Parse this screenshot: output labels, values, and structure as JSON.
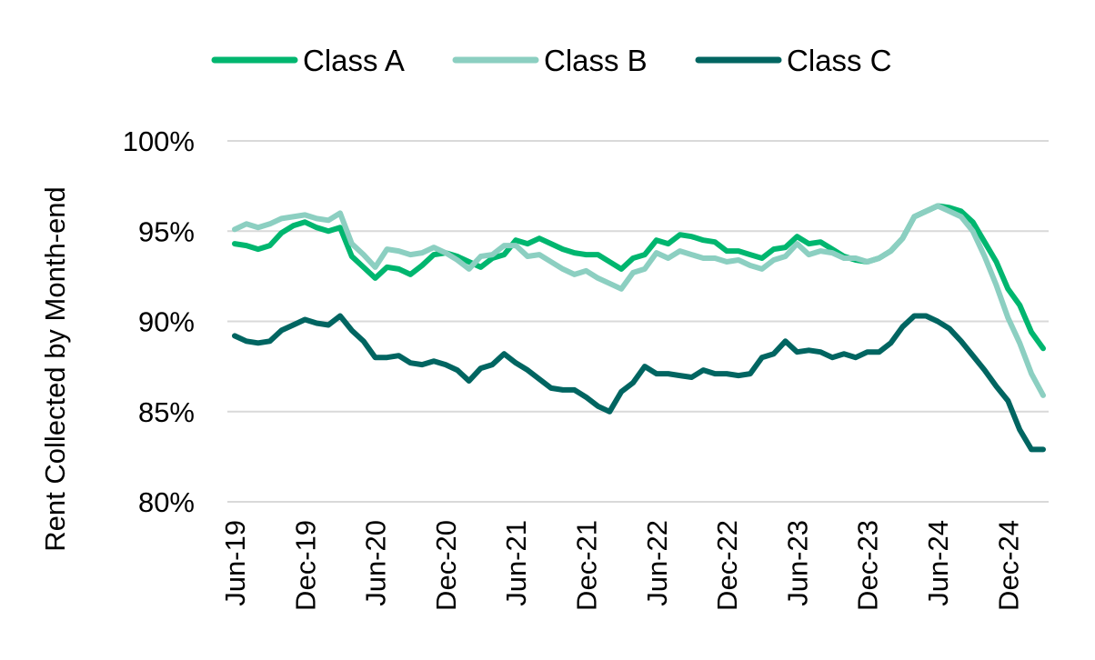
{
  "chart_data": {
    "type": "line",
    "title": "",
    "xlabel": "",
    "ylabel": "Rent Collected by Month-end",
    "ylim": [
      80,
      100
    ],
    "yticks": [
      "80%",
      "85%",
      "90%",
      "95%",
      "100%"
    ],
    "ytick_values": [
      80,
      85,
      90,
      95,
      100
    ],
    "grid": true,
    "legend_position": "top",
    "x_start": "Jun-19",
    "x_count": 70,
    "xticks": [
      "Jun-19",
      "Dec-19",
      "Jun-20",
      "Dec-20",
      "Jun-21",
      "Dec-21",
      "Jun-22",
      "Dec-22",
      "Jun-23",
      "Dec-23",
      "Jun-24",
      "Dec-24"
    ],
    "xtick_indices": [
      0,
      6,
      12,
      18,
      24,
      30,
      36,
      42,
      48,
      54,
      60,
      66
    ],
    "series": [
      {
        "name": "Class A",
        "color": "#00b66f",
        "values": [
          94.3,
          94.2,
          94.0,
          94.2,
          94.9,
          95.3,
          95.5,
          95.2,
          95.0,
          95.2,
          93.6,
          93.0,
          92.4,
          93.0,
          92.9,
          92.6,
          93.1,
          93.7,
          93.8,
          93.6,
          93.3,
          93.0,
          93.5,
          93.7,
          94.5,
          94.3,
          94.6,
          94.3,
          94.0,
          93.8,
          93.7,
          93.7,
          93.3,
          92.9,
          93.5,
          93.7,
          94.5,
          94.3,
          94.8,
          94.7,
          94.5,
          94.4,
          93.9,
          93.9,
          93.7,
          93.5,
          94.0,
          94.1,
          94.7,
          94.3,
          94.4,
          94.0,
          93.6,
          93.4,
          93.3,
          93.5,
          93.9,
          94.6,
          95.8,
          96.1,
          96.4,
          96.3,
          96.1,
          95.5,
          94.4,
          93.3,
          91.8,
          90.9,
          89.4,
          88.5
        ]
      },
      {
        "name": "Class B",
        "color": "#8ccfc1",
        "values": [
          95.1,
          95.4,
          95.2,
          95.4,
          95.7,
          95.8,
          95.9,
          95.7,
          95.6,
          96.0,
          94.3,
          93.7,
          93.0,
          94.0,
          93.9,
          93.7,
          93.8,
          94.1,
          93.8,
          93.4,
          92.9,
          93.6,
          93.7,
          94.2,
          94.2,
          93.6,
          93.7,
          93.3,
          92.9,
          92.6,
          92.8,
          92.4,
          92.1,
          91.8,
          92.7,
          92.9,
          93.8,
          93.5,
          93.9,
          93.7,
          93.5,
          93.5,
          93.3,
          93.4,
          93.1,
          92.9,
          93.4,
          93.6,
          94.3,
          93.7,
          93.9,
          93.8,
          93.5,
          93.5,
          93.3,
          93.5,
          93.9,
          94.6,
          95.8,
          96.1,
          96.4,
          96.1,
          95.8,
          95.0,
          93.6,
          92.0,
          90.2,
          88.8,
          87.1,
          85.9
        ]
      },
      {
        "name": "Class C",
        "color": "#006561",
        "values": [
          89.2,
          88.9,
          88.8,
          88.9,
          89.5,
          89.8,
          90.1,
          89.9,
          89.8,
          90.3,
          89.5,
          88.9,
          88.0,
          88.0,
          88.1,
          87.7,
          87.6,
          87.8,
          87.6,
          87.3,
          86.7,
          87.4,
          87.6,
          88.2,
          87.7,
          87.3,
          86.8,
          86.3,
          86.2,
          86.2,
          85.8,
          85.3,
          85.0,
          86.1,
          86.6,
          87.5,
          87.1,
          87.1,
          87.0,
          86.9,
          87.3,
          87.1,
          87.1,
          87.0,
          87.1,
          88.0,
          88.2,
          88.9,
          88.3,
          88.4,
          88.3,
          88.0,
          88.2,
          88.0,
          88.3,
          88.3,
          88.8,
          89.7,
          90.3,
          90.3,
          90.0,
          89.6,
          88.9,
          88.1,
          87.3,
          86.4,
          85.6,
          84.0,
          82.9,
          82.9
        ]
      }
    ]
  }
}
